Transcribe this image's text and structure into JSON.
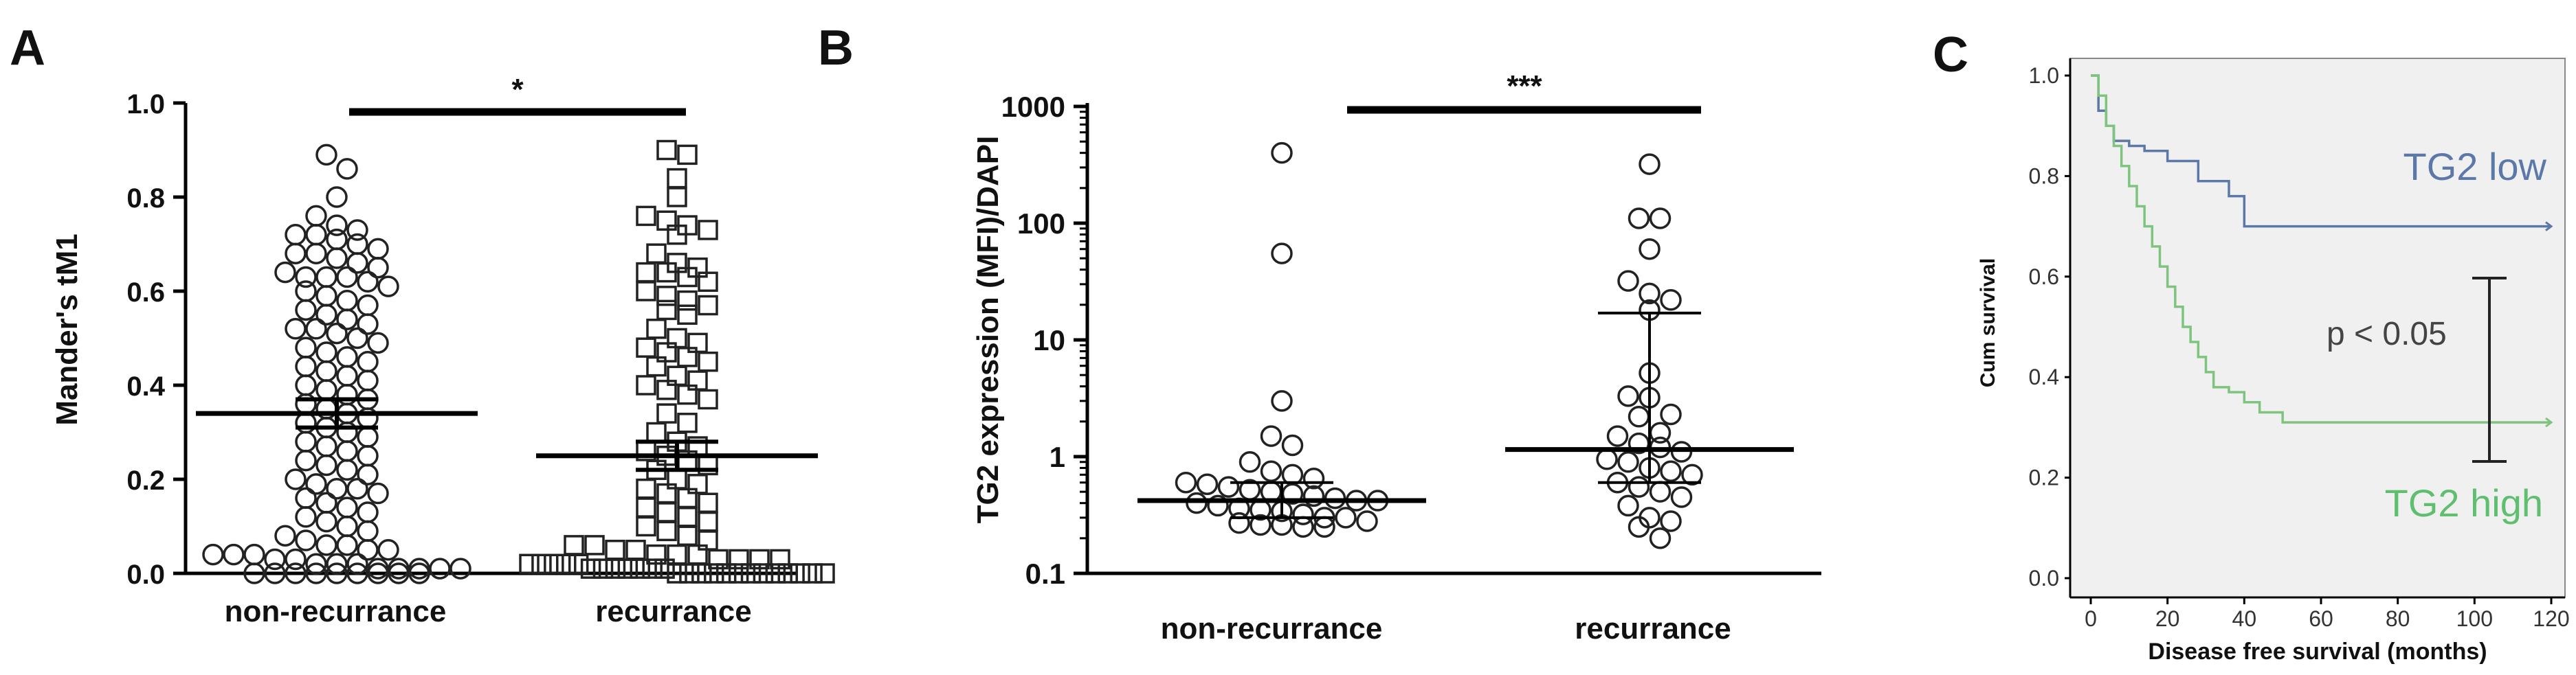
{
  "panels": {
    "A": {
      "letter": "A"
    },
    "B": {
      "letter": "B"
    },
    "C": {
      "letter": "C"
    }
  },
  "chart_data": [
    {
      "panel": "A",
      "type": "scatter",
      "ylabel": "Mander's tM1",
      "categories": [
        "non-recurrance",
        "recurrance"
      ],
      "ylim": [
        0,
        1.0
      ],
      "yticks": [
        "0.0",
        "0.2",
        "0.4",
        "0.6",
        "0.8",
        "1.0"
      ],
      "significance": "*",
      "series": [
        {
          "marker": "circle",
          "mean": 0.34,
          "sem_low": 0.31,
          "sem_high": 0.37,
          "values": [
            0.89,
            0.86,
            0.8,
            0.76,
            0.74,
            0.73,
            0.72,
            0.72,
            0.71,
            0.7,
            0.69,
            0.68,
            0.68,
            0.67,
            0.66,
            0.65,
            0.64,
            0.63,
            0.63,
            0.63,
            0.62,
            0.61,
            0.6,
            0.59,
            0.58,
            0.57,
            0.56,
            0.55,
            0.54,
            0.53,
            0.52,
            0.52,
            0.51,
            0.5,
            0.49,
            0.48,
            0.47,
            0.46,
            0.45,
            0.44,
            0.43,
            0.42,
            0.41,
            0.4,
            0.39,
            0.38,
            0.37,
            0.36,
            0.35,
            0.34,
            0.33,
            0.32,
            0.31,
            0.3,
            0.29,
            0.28,
            0.27,
            0.26,
            0.25,
            0.24,
            0.23,
            0.22,
            0.21,
            0.2,
            0.19,
            0.18,
            0.18,
            0.17,
            0.16,
            0.15,
            0.14,
            0.13,
            0.12,
            0.11,
            0.1,
            0.09,
            0.08,
            0.07,
            0.06,
            0.06,
            0.05,
            0.05,
            0.04,
            0.04,
            0.04,
            0.03,
            0.03,
            0.02,
            0.02,
            0.02,
            0.01,
            0.01,
            0.01,
            0.01,
            0.01,
            0.0,
            0.0,
            0.0,
            0.0,
            0.0,
            0.0,
            0.0,
            0.0,
            0.0
          ]
        },
        {
          "marker": "square",
          "mean": 0.25,
          "sem_low": 0.22,
          "sem_high": 0.28,
          "values": [
            0.9,
            0.89,
            0.84,
            0.8,
            0.76,
            0.75,
            0.74,
            0.73,
            0.72,
            0.68,
            0.66,
            0.65,
            0.64,
            0.64,
            0.63,
            0.62,
            0.6,
            0.59,
            0.58,
            0.57,
            0.56,
            0.55,
            0.52,
            0.5,
            0.49,
            0.48,
            0.47,
            0.46,
            0.45,
            0.44,
            0.42,
            0.41,
            0.4,
            0.39,
            0.38,
            0.37,
            0.34,
            0.32,
            0.3,
            0.28,
            0.27,
            0.26,
            0.25,
            0.24,
            0.23,
            0.22,
            0.2,
            0.19,
            0.18,
            0.17,
            0.16,
            0.15,
            0.14,
            0.13,
            0.12,
            0.11,
            0.1,
            0.09,
            0.08,
            0.07,
            0.06,
            0.06,
            0.05,
            0.05,
            0.04,
            0.04,
            0.04,
            0.03,
            0.03,
            0.03,
            0.03,
            0.02,
            0.02,
            0.02,
            0.02,
            0.02,
            0.01,
            0.01,
            0.01,
            0.01,
            0.01,
            0.01,
            0.01,
            0.0,
            0.0,
            0.0,
            0.0,
            0.0,
            0.0,
            0.0,
            0.0,
            0.0,
            0.0,
            0.0,
            0.0,
            0.0
          ]
        }
      ]
    },
    {
      "panel": "B",
      "type": "scatter",
      "ylabel": "TG2 expression (MFI)/DAPI",
      "yscale": "log",
      "categories": [
        "non-recurrance",
        "recurrance"
      ],
      "ylim": [
        0.1,
        1000
      ],
      "yticks": [
        "0.1",
        "1",
        "10",
        "100",
        "1000"
      ],
      "significance": "***",
      "series": [
        {
          "marker": "circle",
          "median": 0.42,
          "iqr_low": 0.3,
          "iqr_high": 0.6,
          "values": [
            400,
            55,
            3.0,
            1.5,
            1.25,
            0.9,
            0.75,
            0.7,
            0.65,
            0.6,
            0.58,
            0.55,
            0.52,
            0.5,
            0.48,
            0.46,
            0.44,
            0.42,
            0.42,
            0.4,
            0.38,
            0.36,
            0.35,
            0.34,
            0.32,
            0.3,
            0.3,
            0.28,
            0.27,
            0.26,
            0.26,
            0.25,
            0.25
          ]
        },
        {
          "marker": "circle",
          "median": 1.15,
          "iqr_low": 0.6,
          "iqr_high": 17,
          "values": [
            320,
            110,
            110,
            60,
            32,
            25,
            22,
            18,
            5.2,
            3.3,
            3.2,
            2.3,
            2.2,
            1.6,
            1.5,
            1.3,
            1.2,
            1.1,
            0.95,
            0.9,
            0.8,
            0.75,
            0.7,
            0.6,
            0.55,
            0.5,
            0.45,
            0.38,
            0.3,
            0.28,
            0.25,
            0.2
          ]
        }
      ]
    },
    {
      "panel": "C",
      "type": "line",
      "xlabel": "Disease free survival (months)",
      "ylabel": "Cum survival",
      "xlim": [
        0,
        120
      ],
      "ylim": [
        0,
        1.0
      ],
      "xticks": [
        "0",
        "20",
        "40",
        "60",
        "80",
        "100",
        "120"
      ],
      "yticks": [
        "0.0",
        "0.2",
        "0.4",
        "0.6",
        "0.8",
        "1.0"
      ],
      "annotation": "p < 0.05",
      "series": [
        {
          "name": "TG2 low",
          "color": "#5b78a8",
          "x": [
            0,
            2,
            4,
            6,
            10,
            14,
            20,
            28,
            36,
            40,
            120
          ],
          "y": [
            1.0,
            0.93,
            0.9,
            0.87,
            0.86,
            0.85,
            0.83,
            0.79,
            0.76,
            0.7,
            0.7
          ]
        },
        {
          "name": "TG2 high",
          "color": "#7ec47e",
          "x": [
            0,
            2,
            4,
            6,
            8,
            10,
            12,
            14,
            16,
            18,
            20,
            22,
            24,
            26,
            28,
            30,
            32,
            36,
            40,
            44,
            50,
            120
          ],
          "y": [
            1.0,
            0.96,
            0.9,
            0.86,
            0.82,
            0.78,
            0.74,
            0.7,
            0.66,
            0.62,
            0.58,
            0.54,
            0.5,
            0.47,
            0.44,
            0.41,
            0.38,
            0.37,
            0.35,
            0.33,
            0.31,
            0.31
          ]
        }
      ]
    }
  ]
}
